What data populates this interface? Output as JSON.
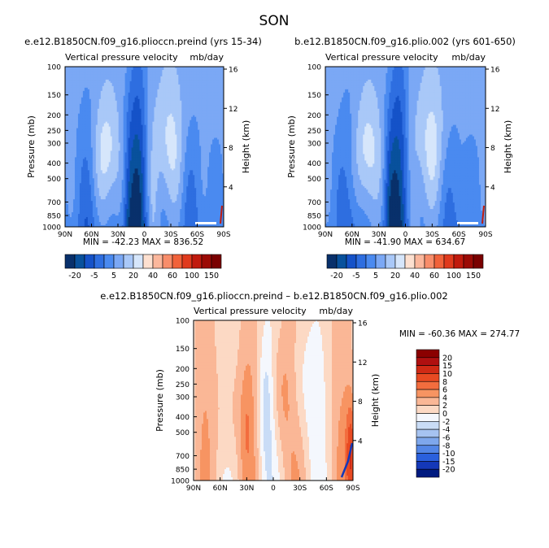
{
  "figure": {
    "title": "SON"
  },
  "chart_data": [
    {
      "type": "heatmap",
      "title": "e.e12.B1850CN.f09_g16.pliocсn.preind (yrs 15-34)",
      "subtitle_left": "Vertical pressure velocity",
      "subtitle_right": "mb/day",
      "xlabel": "",
      "ylabel": "Pressure (mb)",
      "y2label": "Height (km)",
      "x_ticks": [
        "90N",
        "60N",
        "30N",
        "0",
        "30S",
        "60S",
        "90S"
      ],
      "y_ticks": [
        "100",
        "150",
        "200",
        "250",
        "300",
        "400",
        "500",
        "700",
        "850",
        "1000"
      ],
      "y2_ticks": [
        "16",
        "12",
        "8",
        "4"
      ],
      "stats": "MIN = -42.23   MAX = 836.52",
      "colorbar": {
        "orientation": "horizontal",
        "labels": [
          "-20",
          "-5",
          "5",
          "20",
          "40",
          "60",
          "100",
          "150"
        ],
        "colors": [
          "#08306b",
          "#08519c",
          "#1552c8",
          "#2e6ee0",
          "#4a8af0",
          "#7ba8f5",
          "#a9c8f8",
          "#d6e6fb",
          "#fde0d0",
          "#fbb79c",
          "#f88d6a",
          "#f1623a",
          "#e03a1d",
          "#c01a0d",
          "#9b0a05",
          "#7a0000"
        ]
      }
    },
    {
      "type": "heatmap",
      "title": "b.e12.B1850CN.f09_g16.plio.002 (yrs 601-650)",
      "subtitle_left": "Vertical pressure velocity",
      "subtitle_right": "mb/day",
      "xlabel": "",
      "ylabel": "Pressure (mb)",
      "y2label": "Height (km)",
      "x_ticks": [
        "90N",
        "60N",
        "30N",
        "0",
        "30S",
        "60S",
        "90S"
      ],
      "y_ticks": [
        "100",
        "150",
        "200",
        "250",
        "300",
        "400",
        "500",
        "700",
        "850",
        "1000"
      ],
      "y2_ticks": [
        "16",
        "12",
        "8",
        "4"
      ],
      "stats": "MIN = -41.90   MAX = 634.67",
      "colorbar": {
        "orientation": "horizontal",
        "labels": [
          "-20",
          "-5",
          "5",
          "20",
          "40",
          "60",
          "100",
          "150"
        ],
        "colors": [
          "#08306b",
          "#08519c",
          "#1552c8",
          "#2e6ee0",
          "#4a8af0",
          "#7ba8f5",
          "#a9c8f8",
          "#d6e6fb",
          "#fde0d0",
          "#fbb79c",
          "#f88d6a",
          "#f1623a",
          "#e03a1d",
          "#c01a0d",
          "#9b0a05",
          "#7a0000"
        ]
      }
    },
    {
      "type": "heatmap",
      "title": "e.e12.B1850CN.f09_g16.pliocсn.preind – b.e12.B1850CN.f09_g16.plio.002",
      "subtitle_left": "Vertical pressure velocity",
      "subtitle_right": "mb/day",
      "xlabel": "",
      "ylabel": "Pressure (mb)",
      "y2label": "Height (km)",
      "x_ticks": [
        "90N",
        "60N",
        "30N",
        "0",
        "30S",
        "60S",
        "90S"
      ],
      "y_ticks": [
        "100",
        "150",
        "200",
        "250",
        "300",
        "400",
        "500",
        "700",
        "850",
        "1000"
      ],
      "y2_ticks": [
        "16",
        "12",
        "8",
        "4"
      ],
      "stats": "MIN = -60.36   MAX = 274.77",
      "colorbar": {
        "orientation": "vertical",
        "labels": [
          "20",
          "15",
          "10",
          "8",
          "6",
          "4",
          "2",
          "0",
          "-2",
          "-4",
          "-6",
          "-8",
          "-10",
          "-15",
          "-20"
        ],
        "colors": [
          "#8b0000",
          "#b01010",
          "#d02a15",
          "#e84a22",
          "#f36d3e",
          "#f79462",
          "#fab796",
          "#fcd9c4",
          "#f4f7fd",
          "#c9dcf6",
          "#a6c3f1",
          "#7ea7ec",
          "#5386e6",
          "#2a60dd",
          "#1438b8",
          "#001a80"
        ]
      }
    }
  ]
}
